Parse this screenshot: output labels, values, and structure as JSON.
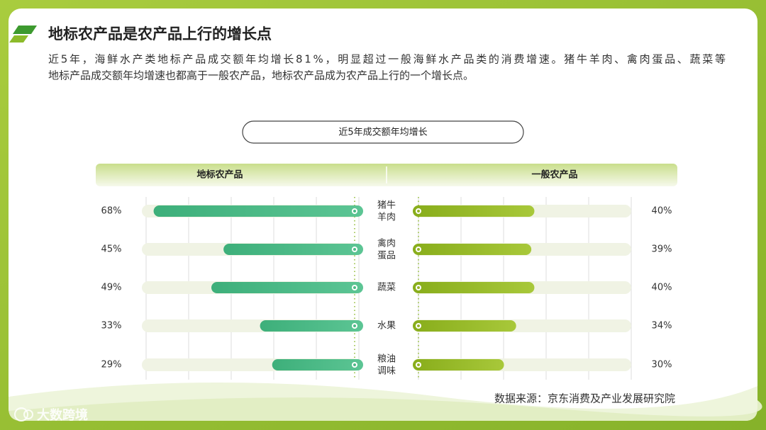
{
  "chart_data": {
    "type": "butterfly_bar",
    "title": "地标农产品是农产品上行的增长点",
    "subtitle_lines": [
      "近5年，海鲜水产类地标产品成交额年均增长81%，明显超过一般海鲜水产品类的消费增速。猪牛羊肉、禽肉蛋品、蔬菜等",
      "地标产品成交额年均增速也都高于一般农产品，地标农产品成为农产品上行的一个增长点。"
    ],
    "chart_title": "近5年成交额年均增长",
    "categories": [
      "猪牛羊肉",
      "禽肉蛋品",
      "蔬菜",
      "水果",
      "粮油调味"
    ],
    "series": [
      {
        "name": "地标农产品",
        "color": "#4cba86",
        "values": [
          68,
          45,
          49,
          33,
          29
        ],
        "value_labels": [
          "68%",
          "45%",
          "49%",
          "33%",
          "29%"
        ]
      },
      {
        "name": "一般农产品",
        "color": "#96b526",
        "values": [
          40,
          39,
          40,
          34,
          30
        ],
        "value_labels": [
          "40%",
          "39%",
          "40%",
          "34%",
          "30%"
        ]
      }
    ],
    "xlim": [
      0,
      70
    ],
    "xticks": [
      0,
      14,
      28,
      42,
      56,
      70
    ],
    "grid": true,
    "source": "数据来源：京东消费及产业发展研究院",
    "watermark": "大数跨境"
  }
}
